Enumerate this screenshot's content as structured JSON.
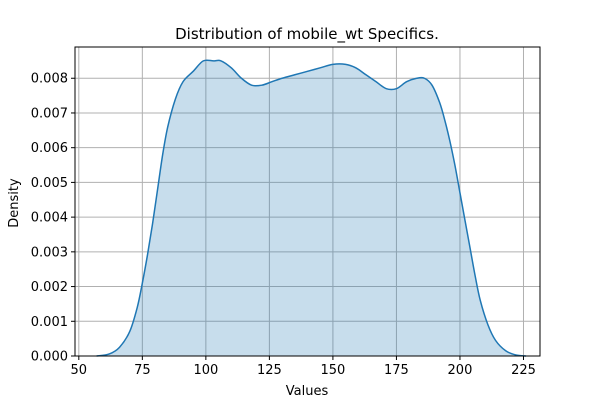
{
  "chart_data": {
    "type": "area",
    "title": "Distribution of mobile_wt Specifics.",
    "xlabel": "Values",
    "ylabel": "Density",
    "xlim": [
      48.5,
      231.5
    ],
    "ylim": [
      0,
      0.0089
    ],
    "grid": true,
    "x_ticks": [
      "50",
      "75",
      "100",
      "125",
      "150",
      "175",
      "200",
      "225"
    ],
    "y_ticks": [
      "0.000",
      "0.001",
      "0.002",
      "0.003",
      "0.004",
      "0.005",
      "0.006",
      "0.007",
      "0.008"
    ],
    "series": [
      {
        "x": [
          57,
          62,
          66,
          70,
          73,
          75,
          77,
          79,
          81,
          83,
          85,
          88,
          91,
          95,
          99,
          103,
          106,
          110,
          114,
          118,
          122,
          126,
          130,
          135,
          140,
          145,
          150,
          155,
          159,
          163,
          167,
          171,
          175,
          179,
          183,
          186,
          189,
          192,
          194,
          196,
          198,
          200,
          202,
          204,
          206,
          208,
          211,
          214,
          218,
          222,
          226
        ],
        "y": [
          0.0,
          6e-05,
          0.00025,
          0.0007,
          0.0014,
          0.0021,
          0.0029,
          0.0038,
          0.0048,
          0.0058,
          0.0066,
          0.0074,
          0.0079,
          0.0082,
          0.0085,
          0.0085,
          0.0085,
          0.0083,
          0.008,
          0.0078,
          0.0078,
          0.0079,
          0.008,
          0.0081,
          0.0082,
          0.0083,
          0.0084,
          0.0084,
          0.0083,
          0.0081,
          0.0079,
          0.0077,
          0.0077,
          0.0079,
          0.008,
          0.008,
          0.0078,
          0.0073,
          0.0068,
          0.0062,
          0.0055,
          0.0047,
          0.0039,
          0.0031,
          0.0023,
          0.0016,
          0.0009,
          0.00045,
          0.00015,
          3e-05,
          0.0
        ]
      }
    ],
    "colors": {
      "line": "#1f77b4",
      "fill": "#1f77b4",
      "grid": "#b0b0b0"
    }
  }
}
